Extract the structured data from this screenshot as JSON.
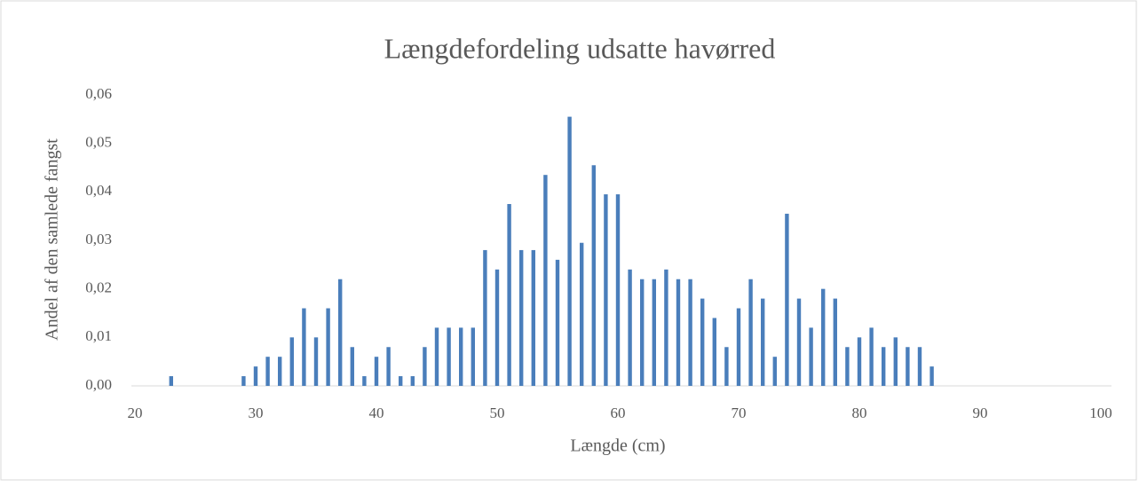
{
  "chart_data": {
    "type": "bar",
    "title": "Længdefordeling udsatte havørred",
    "xlabel": "Længde (cm)",
    "ylabel": "Andel af den samlede fangst",
    "color": "#4a7ebb",
    "x": [
      23,
      29,
      30,
      31,
      32,
      33,
      34,
      35,
      36,
      37,
      38,
      39,
      40,
      41,
      42,
      43,
      44,
      45,
      46,
      47,
      48,
      49,
      50,
      51,
      52,
      53,
      54,
      55,
      56,
      57,
      58,
      59,
      60,
      61,
      62,
      63,
      64,
      65,
      66,
      67,
      68,
      69,
      70,
      71,
      72,
      73,
      74,
      75,
      76,
      77,
      78,
      79,
      80,
      81,
      82,
      83,
      84,
      85,
      86
    ],
    "values": [
      0.002,
      0.002,
      0.004,
      0.006,
      0.006,
      0.01,
      0.016,
      0.01,
      0.016,
      0.022,
      0.008,
      0.002,
      0.006,
      0.008,
      0.002,
      0.002,
      0.008,
      0.012,
      0.012,
      0.012,
      0.012,
      0.028,
      0.024,
      0.0375,
      0.028,
      0.028,
      0.0435,
      0.026,
      0.0555,
      0.0295,
      0.0455,
      0.0395,
      0.0395,
      0.024,
      0.022,
      0.022,
      0.024,
      0.022,
      0.022,
      0.018,
      0.014,
      0.008,
      0.016,
      0.022,
      0.018,
      0.006,
      0.0355,
      0.018,
      0.012,
      0.02,
      0.018,
      0.008,
      0.01,
      0.012,
      0.008,
      0.01,
      0.008,
      0.008,
      0.004
    ],
    "xlim": [
      20,
      100
    ],
    "xticks": [
      20,
      30,
      40,
      50,
      60,
      70,
      80,
      90,
      100
    ],
    "ylim": [
      0,
      0.06
    ],
    "yticks": [
      {
        "value": 0,
        "label": "0,00"
      },
      {
        "value": 0.01,
        "label": "0,01"
      },
      {
        "value": 0.02,
        "label": "0,02"
      },
      {
        "value": 0.03,
        "label": "0,03"
      },
      {
        "value": 0.04,
        "label": "0,04"
      },
      {
        "value": 0.05,
        "label": "0,05"
      },
      {
        "value": 0.06,
        "label": "0,06"
      }
    ],
    "grid": false
  }
}
